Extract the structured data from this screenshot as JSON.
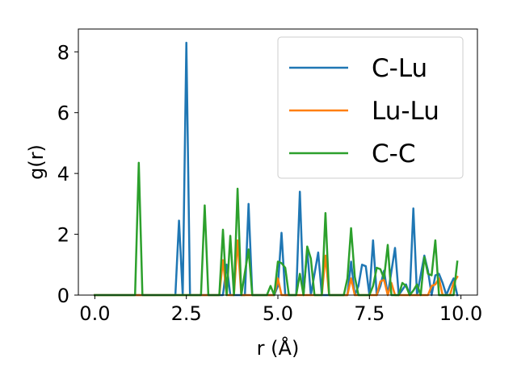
{
  "chart_data": {
    "type": "line",
    "xlabel": "r (Å)",
    "ylabel": "g(r)",
    "xlim": [
      -0.45,
      10.45
    ],
    "ylim": [
      0,
      8.75
    ],
    "xticks": [
      0.0,
      2.5,
      5.0,
      7.5,
      10.0
    ],
    "xtick_labels": [
      "0.0",
      "2.5",
      "5.0",
      "7.5",
      "10.0"
    ],
    "yticks": [
      0,
      2,
      4,
      6,
      8
    ],
    "ytick_labels": [
      "0",
      "2",
      "4",
      "6",
      "8"
    ],
    "grid": false,
    "legend_position": "top-right",
    "series": [
      {
        "name": "C-Lu",
        "color": "#1f77b4",
        "points": [
          [
            0.0,
            0
          ],
          [
            2.2,
            0
          ],
          [
            2.3,
            2.45
          ],
          [
            2.4,
            0
          ],
          [
            2.5,
            8.3
          ],
          [
            2.6,
            0
          ],
          [
            3.5,
            0
          ],
          [
            3.6,
            1.0
          ],
          [
            3.7,
            0
          ],
          [
            4.1,
            0
          ],
          [
            4.2,
            3.0
          ],
          [
            4.3,
            0
          ],
          [
            4.9,
            0
          ],
          [
            5.0,
            0.3
          ],
          [
            5.1,
            2.05
          ],
          [
            5.2,
            0
          ],
          [
            5.5,
            0
          ],
          [
            5.6,
            3.4
          ],
          [
            5.7,
            0
          ],
          [
            5.8,
            1.5
          ],
          [
            5.9,
            0
          ],
          [
            6.1,
            1.4
          ],
          [
            6.2,
            0
          ],
          [
            6.9,
            0
          ],
          [
            7.0,
            1.1
          ],
          [
            7.1,
            0
          ],
          [
            7.2,
            0.3
          ],
          [
            7.3,
            1.0
          ],
          [
            7.4,
            0.95
          ],
          [
            7.5,
            0
          ],
          [
            7.6,
            1.8
          ],
          [
            7.7,
            0
          ],
          [
            7.8,
            0.3
          ],
          [
            7.9,
            0.8
          ],
          [
            8.0,
            0
          ],
          [
            8.2,
            1.55
          ],
          [
            8.3,
            0
          ],
          [
            8.5,
            0.35
          ],
          [
            8.6,
            0
          ],
          [
            8.7,
            2.85
          ],
          [
            8.8,
            0
          ],
          [
            9.0,
            1.3
          ],
          [
            9.1,
            0.8
          ],
          [
            9.2,
            0
          ],
          [
            9.3,
            0.65
          ],
          [
            9.4,
            0.7
          ],
          [
            9.5,
            0.4
          ],
          [
            9.6,
            0
          ],
          [
            9.7,
            0.3
          ],
          [
            9.8,
            0.55
          ],
          [
            9.9,
            0
          ]
        ]
      },
      {
        "name": "Lu-Lu",
        "color": "#ff7f0e",
        "points": [
          [
            0.0,
            0
          ],
          [
            3.4,
            0
          ],
          [
            3.5,
            1.15
          ],
          [
            3.6,
            0
          ],
          [
            3.8,
            0
          ],
          [
            3.9,
            1.8
          ],
          [
            4.0,
            0
          ],
          [
            4.9,
            0
          ],
          [
            5.0,
            0.55
          ],
          [
            5.1,
            0
          ],
          [
            6.2,
            0
          ],
          [
            6.3,
            1.3
          ],
          [
            6.4,
            0
          ],
          [
            6.9,
            0
          ],
          [
            7.0,
            0.55
          ],
          [
            7.1,
            0
          ],
          [
            7.7,
            0
          ],
          [
            7.8,
            0.45
          ],
          [
            7.9,
            0.5
          ],
          [
            8.0,
            0
          ],
          [
            8.1,
            0.4
          ],
          [
            8.2,
            0
          ],
          [
            9.1,
            0
          ],
          [
            9.2,
            0.3
          ],
          [
            9.3,
            0.35
          ],
          [
            9.4,
            0.55
          ],
          [
            9.5,
            0
          ],
          [
            9.7,
            0
          ],
          [
            9.8,
            0.4
          ],
          [
            9.9,
            0.6
          ]
        ]
      },
      {
        "name": "C-C",
        "color": "#2ca02c",
        "points": [
          [
            0.0,
            0
          ],
          [
            1.1,
            0
          ],
          [
            1.2,
            4.35
          ],
          [
            1.3,
            0
          ],
          [
            2.9,
            0
          ],
          [
            3.0,
            2.95
          ],
          [
            3.1,
            0
          ],
          [
            3.4,
            0
          ],
          [
            3.5,
            2.15
          ],
          [
            3.6,
            0
          ],
          [
            3.7,
            1.95
          ],
          [
            3.8,
            0
          ],
          [
            3.9,
            3.5
          ],
          [
            4.0,
            0
          ],
          [
            4.2,
            1.5
          ],
          [
            4.3,
            0
          ],
          [
            4.7,
            0
          ],
          [
            4.8,
            0.3
          ],
          [
            4.9,
            0
          ],
          [
            5.0,
            1.1
          ],
          [
            5.1,
            1.05
          ],
          [
            5.2,
            0.9
          ],
          [
            5.3,
            0
          ],
          [
            5.5,
            0
          ],
          [
            5.6,
            0.7
          ],
          [
            5.7,
            0
          ],
          [
            5.8,
            1.6
          ],
          [
            5.9,
            1.2
          ],
          [
            6.0,
            0
          ],
          [
            6.2,
            0
          ],
          [
            6.3,
            2.7
          ],
          [
            6.4,
            0
          ],
          [
            6.8,
            0
          ],
          [
            6.9,
            0.55
          ],
          [
            7.0,
            2.2
          ],
          [
            7.1,
            0.6
          ],
          [
            7.2,
            0
          ],
          [
            7.5,
            0
          ],
          [
            7.6,
            0.3
          ],
          [
            7.7,
            0.9
          ],
          [
            7.8,
            0.85
          ],
          [
            7.9,
            0.55
          ],
          [
            8.0,
            1.65
          ],
          [
            8.1,
            0
          ],
          [
            8.3,
            0
          ],
          [
            8.4,
            0.4
          ],
          [
            8.5,
            0.3
          ],
          [
            8.6,
            0
          ],
          [
            8.7,
            0.15
          ],
          [
            8.8,
            0.35
          ],
          [
            8.9,
            0
          ],
          [
            9.0,
            1.25
          ],
          [
            9.1,
            0.7
          ],
          [
            9.2,
            0.65
          ],
          [
            9.3,
            1.8
          ],
          [
            9.4,
            0
          ],
          [
            9.8,
            0
          ],
          [
            9.9,
            1.1
          ]
        ]
      }
    ]
  }
}
